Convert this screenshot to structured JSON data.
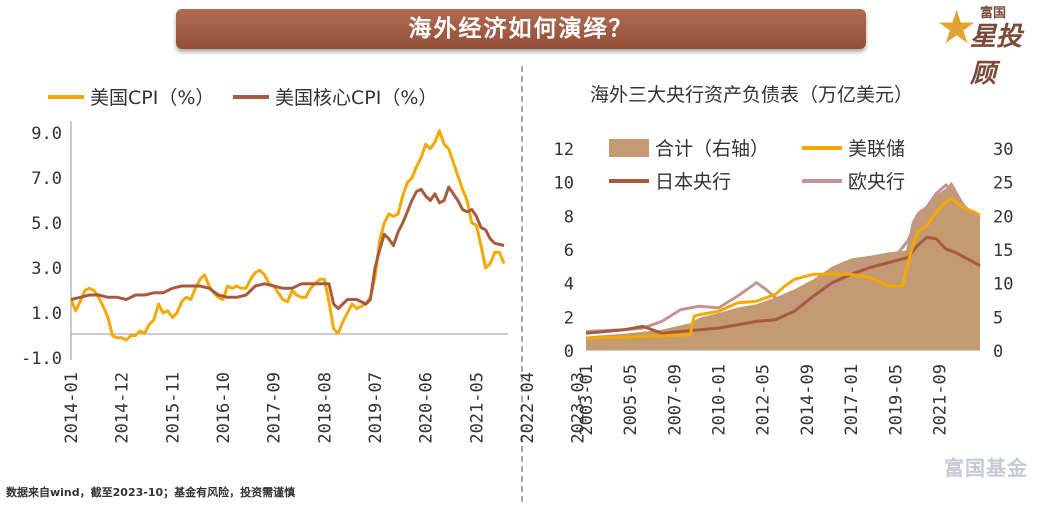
{
  "header": {
    "title": "海外经济如何演绎？"
  },
  "logo": {
    "small": "富国",
    "main": "星投顾",
    "icon": "star-icon"
  },
  "footnote": "数据来自wind，截至2023-10；基金有风险，投资需谨慎",
  "watermark": "富国基金",
  "colors": {
    "orange": "#f5a800",
    "brown": "#a85a3e",
    "area": "#c49a72",
    "ecb": "#c49590",
    "banner": "#a15c45"
  },
  "chart_data": [
    {
      "type": "line",
      "title": "",
      "ylim": [
        -1,
        10
      ],
      "yticks": [
        "9.0",
        "7.0",
        "5.0",
        "3.0",
        "1.0",
        "-1.0"
      ],
      "xticks": [
        "2014-01",
        "2014-12",
        "2015-11",
        "2016-10",
        "2017-09",
        "2018-08",
        "2019-07",
        "2020-06",
        "2021-05",
        "2022-04",
        "2023-03"
      ],
      "legend": [
        "美国CPI（%）",
        "美国核心CPI（%）"
      ],
      "series": [
        {
          "name": "美国CPI（%）",
          "color": "#f5a800",
          "points": [
            [
              0,
              1.6
            ],
            [
              1,
              1.1
            ],
            [
              2,
              1.5
            ],
            [
              3,
              2.0
            ],
            [
              4,
              2.1
            ],
            [
              5,
              2.0
            ],
            [
              6,
              1.7
            ],
            [
              7,
              1.3
            ],
            [
              8,
              0.8
            ],
            [
              9,
              0.0
            ],
            [
              10,
              -0.1
            ],
            [
              11,
              -0.1
            ],
            [
              12,
              -0.2
            ],
            [
              13,
              0.0
            ],
            [
              14,
              0.0
            ],
            [
              15,
              0.2
            ],
            [
              16,
              0.1
            ],
            [
              17,
              0.5
            ],
            [
              18,
              0.7
            ],
            [
              19,
              1.4
            ],
            [
              20,
              1.0
            ],
            [
              21,
              1.1
            ],
            [
              22,
              0.8
            ],
            [
              23,
              1.0
            ],
            [
              24,
              1.5
            ],
            [
              25,
              1.7
            ],
            [
              26,
              1.6
            ],
            [
              27,
              2.1
            ],
            [
              28,
              2.5
            ],
            [
              29,
              2.7
            ],
            [
              30,
              2.2
            ],
            [
              31,
              1.9
            ],
            [
              32,
              1.7
            ],
            [
              33,
              1.6
            ],
            [
              34,
              2.2
            ],
            [
              35,
              2.1
            ],
            [
              36,
              2.2
            ],
            [
              37,
              2.1
            ],
            [
              38,
              2.1
            ],
            [
              39,
              2.5
            ],
            [
              40,
              2.8
            ],
            [
              41,
              2.9
            ],
            [
              42,
              2.7
            ],
            [
              43,
              2.3
            ],
            [
              44,
              2.2
            ],
            [
              45,
              1.9
            ],
            [
              46,
              1.6
            ],
            [
              47,
              1.5
            ],
            [
              48,
              2.0
            ],
            [
              49,
              1.8
            ],
            [
              50,
              1.7
            ],
            [
              51,
              1.7
            ],
            [
              52,
              2.1
            ],
            [
              53,
              2.3
            ],
            [
              54,
              2.5
            ],
            [
              55,
              2.5
            ],
            [
              56,
              1.5
            ],
            [
              57,
              0.3
            ],
            [
              58,
              0.1
            ],
            [
              59,
              0.6
            ],
            [
              60,
              1.0
            ],
            [
              61,
              1.4
            ],
            [
              62,
              1.2
            ],
            [
              63,
              1.3
            ],
            [
              64,
              1.4
            ],
            [
              65,
              1.7
            ],
            [
              66,
              2.6
            ],
            [
              67,
              4.2
            ],
            [
              68,
              5.0
            ],
            [
              69,
              5.4
            ],
            [
              70,
              5.3
            ],
            [
              71,
              5.4
            ],
            [
              72,
              6.2
            ],
            [
              73,
              6.8
            ],
            [
              74,
              7.0
            ],
            [
              75,
              7.5
            ],
            [
              76,
              7.9
            ],
            [
              77,
              8.5
            ],
            [
              78,
              8.3
            ],
            [
              79,
              8.6
            ],
            [
              80,
              9.1
            ],
            [
              81,
              8.5
            ],
            [
              82,
              8.3
            ],
            [
              83,
              7.7
            ],
            [
              84,
              7.1
            ],
            [
              85,
              6.5
            ],
            [
              86,
              6.0
            ],
            [
              87,
              5.0
            ],
            [
              88,
              4.9
            ],
            [
              89,
              4.0
            ],
            [
              90,
              3.0
            ],
            [
              91,
              3.2
            ],
            [
              92,
              3.7
            ],
            [
              93,
              3.7
            ],
            [
              94,
              3.2
            ]
          ]
        },
        {
          "name": "美国核心CPI（%）",
          "color": "#a85a3e",
          "points": [
            [
              0,
              1.6
            ],
            [
              2,
              1.7
            ],
            [
              4,
              1.8
            ],
            [
              6,
              1.8
            ],
            [
              8,
              1.7
            ],
            [
              10,
              1.7
            ],
            [
              12,
              1.6
            ],
            [
              14,
              1.8
            ],
            [
              16,
              1.8
            ],
            [
              18,
              1.9
            ],
            [
              20,
              1.9
            ],
            [
              22,
              2.1
            ],
            [
              24,
              2.2
            ],
            [
              26,
              2.2
            ],
            [
              28,
              2.2
            ],
            [
              30,
              2.1
            ],
            [
              32,
              1.8
            ],
            [
              34,
              1.7
            ],
            [
              36,
              1.7
            ],
            [
              38,
              1.8
            ],
            [
              40,
              2.2
            ],
            [
              42,
              2.3
            ],
            [
              44,
              2.2
            ],
            [
              46,
              2.1
            ],
            [
              48,
              2.1
            ],
            [
              50,
              2.3
            ],
            [
              52,
              2.3
            ],
            [
              54,
              2.3
            ],
            [
              56,
              2.3
            ],
            [
              57,
              1.4
            ],
            [
              58,
              1.2
            ],
            [
              60,
              1.6
            ],
            [
              62,
              1.6
            ],
            [
              64,
              1.4
            ],
            [
              65,
              1.6
            ],
            [
              66,
              3.0
            ],
            [
              67,
              3.8
            ],
            [
              68,
              4.5
            ],
            [
              69,
              4.3
            ],
            [
              70,
              4.0
            ],
            [
              71,
              4.6
            ],
            [
              72,
              5.0
            ],
            [
              73,
              5.5
            ],
            [
              74,
              6.0
            ],
            [
              75,
              6.4
            ],
            [
              76,
              6.5
            ],
            [
              77,
              6.2
            ],
            [
              78,
              6.0
            ],
            [
              79,
              6.3
            ],
            [
              80,
              5.9
            ],
            [
              81,
              6.0
            ],
            [
              82,
              6.6
            ],
            [
              83,
              6.3
            ],
            [
              84,
              6.0
            ],
            [
              85,
              5.6
            ],
            [
              86,
              5.5
            ],
            [
              87,
              5.6
            ],
            [
              88,
              5.3
            ],
            [
              89,
              4.8
            ],
            [
              90,
              4.7
            ],
            [
              91,
              4.3
            ],
            [
              92,
              4.1
            ],
            [
              94,
              4.0
            ]
          ]
        }
      ]
    },
    {
      "type": "line",
      "title": "海外三大央行资产负债表（万亿美元）",
      "ylim_left": [
        0,
        12
      ],
      "ylim_right": [
        0,
        30
      ],
      "yticks_left": [
        "12",
        "10",
        "8",
        "6",
        "4",
        "2",
        "0"
      ],
      "yticks_right": [
        "30",
        "25",
        "20",
        "15",
        "10",
        "5",
        "0"
      ],
      "xticks": [
        "2003-01",
        "2005-05",
        "2007-09",
        "2010-01",
        "2012-05",
        "2014-09",
        "2017-01",
        "2019-05",
        "2021-09"
      ],
      "legend": [
        "合计（右轴）",
        "美联储",
        "日本央行",
        "欧央行"
      ],
      "series": [
        {
          "name": "合计（右轴）",
          "color": "#c49a72",
          "axis": "right",
          "points": [
            [
              2003,
              2.0
            ],
            [
              2005,
              2.4
            ],
            [
              2007,
              3.0
            ],
            [
              2008.5,
              4.0
            ],
            [
              2009,
              4.8
            ],
            [
              2010,
              5.5
            ],
            [
              2011,
              6.3
            ],
            [
              2012,
              6.8
            ],
            [
              2013,
              7.8
            ],
            [
              2014,
              9.0
            ],
            [
              2015,
              10.5
            ],
            [
              2016,
              12.4
            ],
            [
              2017,
              13.6
            ],
            [
              2018,
              14.0
            ],
            [
              2019,
              14.5
            ],
            [
              2019.9,
              14.8
            ],
            [
              2020.2,
              19.0
            ],
            [
              2020.5,
              20.5
            ],
            [
              2021,
              21.5
            ],
            [
              2021.5,
              23.0
            ],
            [
              2022,
              24.0
            ],
            [
              2022.3,
              25.0
            ],
            [
              2022.7,
              23.0
            ],
            [
              2023,
              21.5
            ],
            [
              2023.5,
              20.5
            ],
            [
              2023.8,
              20.0
            ]
          ]
        },
        {
          "name": "美联储",
          "color": "#f5a800",
          "axis": "left",
          "points": [
            [
              2003,
              0.7
            ],
            [
              2006,
              0.8
            ],
            [
              2008.5,
              0.9
            ],
            [
              2008.7,
              2.0
            ],
            [
              2009,
              2.1
            ],
            [
              2010,
              2.3
            ],
            [
              2011,
              2.8
            ],
            [
              2012,
              2.9
            ],
            [
              2013,
              3.3
            ],
            [
              2013.5,
              3.8
            ],
            [
              2014,
              4.2
            ],
            [
              2015,
              4.5
            ],
            [
              2016,
              4.5
            ],
            [
              2017,
              4.5
            ],
            [
              2018,
              4.3
            ],
            [
              2019,
              3.8
            ],
            [
              2019.7,
              3.8
            ],
            [
              2020.2,
              6.0
            ],
            [
              2020.5,
              7.0
            ],
            [
              2021,
              7.4
            ],
            [
              2021.5,
              8.2
            ],
            [
              2022,
              8.8
            ],
            [
              2022.3,
              9.0
            ],
            [
              2023,
              8.4
            ],
            [
              2023.5,
              8.2
            ],
            [
              2023.8,
              8.0
            ]
          ]
        },
        {
          "name": "日本央行",
          "color": "#a85a3e",
          "axis": "left",
          "points": [
            [
              2003,
              1.0
            ],
            [
              2004,
              1.1
            ],
            [
              2005,
              1.2
            ],
            [
              2006,
              1.4
            ],
            [
              2007,
              1.0
            ],
            [
              2008,
              1.1
            ],
            [
              2009,
              1.2
            ],
            [
              2010,
              1.3
            ],
            [
              2011,
              1.5
            ],
            [
              2012,
              1.7
            ],
            [
              2013,
              1.8
            ],
            [
              2014,
              2.3
            ],
            [
              2015,
              3.2
            ],
            [
              2016,
              4.0
            ],
            [
              2017,
              4.5
            ],
            [
              2018,
              4.9
            ],
            [
              2019,
              5.2
            ],
            [
              2020,
              5.5
            ],
            [
              2020.5,
              6.2
            ],
            [
              2021,
              6.7
            ],
            [
              2021.5,
              6.6
            ],
            [
              2022,
              6.0
            ],
            [
              2022.5,
              5.8
            ],
            [
              2023,
              5.5
            ],
            [
              2023.5,
              5.2
            ],
            [
              2023.8,
              5.0
            ]
          ]
        },
        {
          "name": "欧央行",
          "color": "#c49590",
          "axis": "left",
          "points": [
            [
              2003,
              1.1
            ],
            [
              2005,
              1.2
            ],
            [
              2006,
              1.3
            ],
            [
              2007,
              1.7
            ],
            [
              2008,
              2.4
            ],
            [
              2009,
              2.6
            ],
            [
              2010,
              2.5
            ],
            [
              2011,
              3.2
            ],
            [
              2012,
              4.0
            ],
            [
              2012.5,
              3.6
            ],
            [
              2013,
              3.1
            ],
            [
              2014,
              2.7
            ],
            [
              2015,
              3.0
            ],
            [
              2016,
              3.8
            ],
            [
              2017,
              4.8
            ],
            [
              2018,
              5.3
            ],
            [
              2019,
              5.1
            ],
            [
              2020,
              6.5
            ],
            [
              2020.5,
              7.8
            ],
            [
              2021,
              8.5
            ],
            [
              2021.5,
              9.3
            ],
            [
              2022,
              9.8
            ],
            [
              2022.5,
              9.3
            ],
            [
              2023,
              8.5
            ],
            [
              2023.5,
              8.0
            ],
            [
              2023.8,
              7.8
            ]
          ]
        }
      ]
    }
  ]
}
